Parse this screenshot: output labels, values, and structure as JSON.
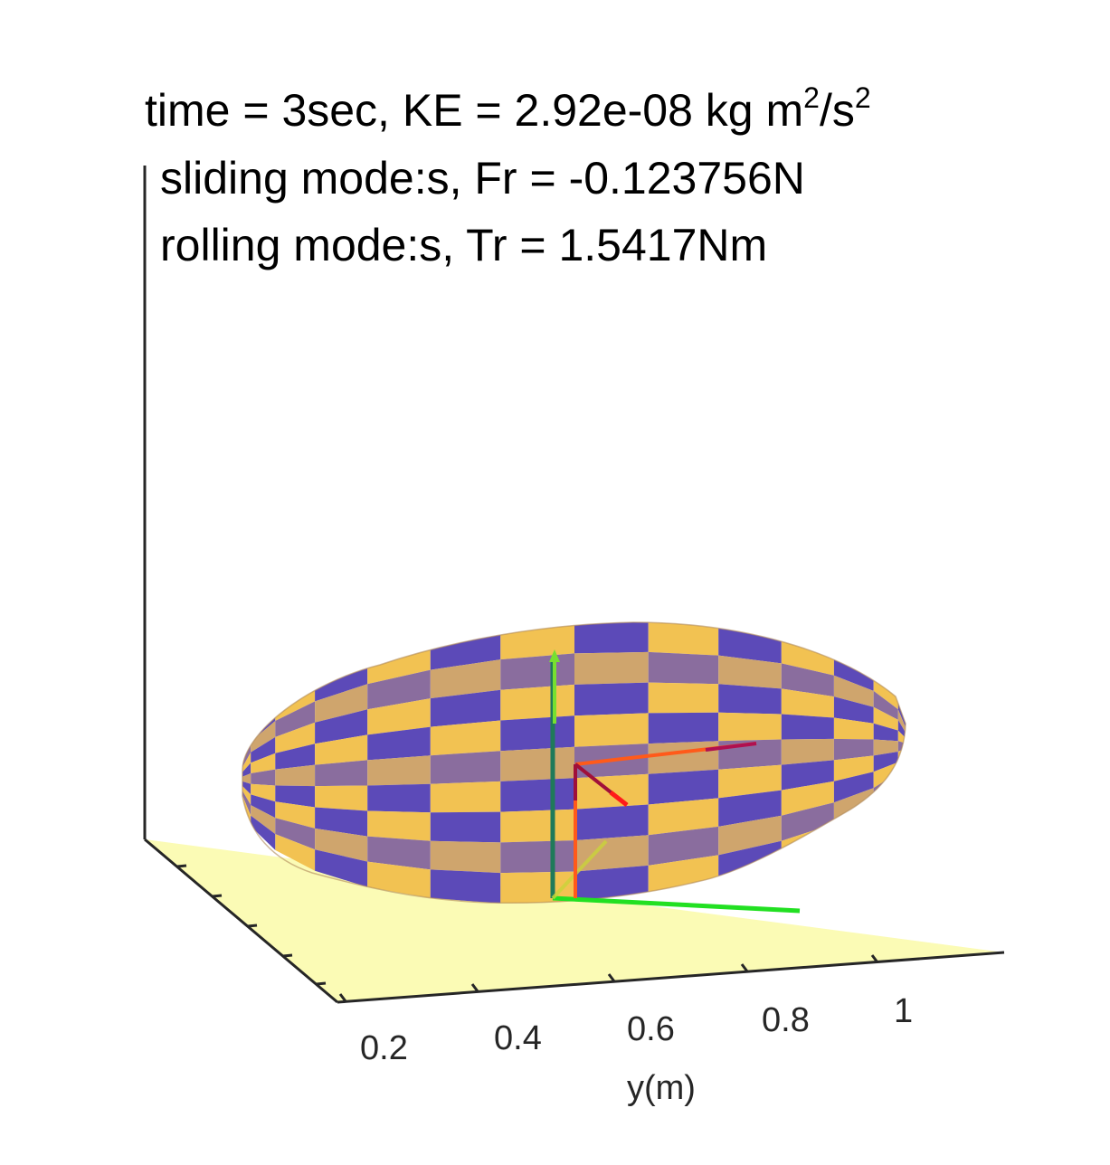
{
  "title": {
    "line1_prefix": "time = 3sec, KE = 2.92e-08 kg m",
    "line1_sup1": "2",
    "line1_mid": "/s",
    "line1_sup2": "2",
    "line2": "sliding mode:s, Fr = -0.123756N",
    "line3": "rolling mode:s, Tr = 1.5417Nm"
  },
  "axes": {
    "y_label": "y(m)",
    "y_ticks": [
      "0.2",
      "0.4",
      "0.6",
      "0.8",
      "1"
    ]
  },
  "colors": {
    "ground": "#fbfbb5",
    "patch_gold": "#f2c252",
    "patch_tan": "#cfa56d",
    "patch_blue": "#5c4ab8",
    "patch_mauve": "#8a6d9e",
    "frame_green": "#22e022",
    "frame_red": "#ff2b1a",
    "axis_line": "#262626"
  }
}
